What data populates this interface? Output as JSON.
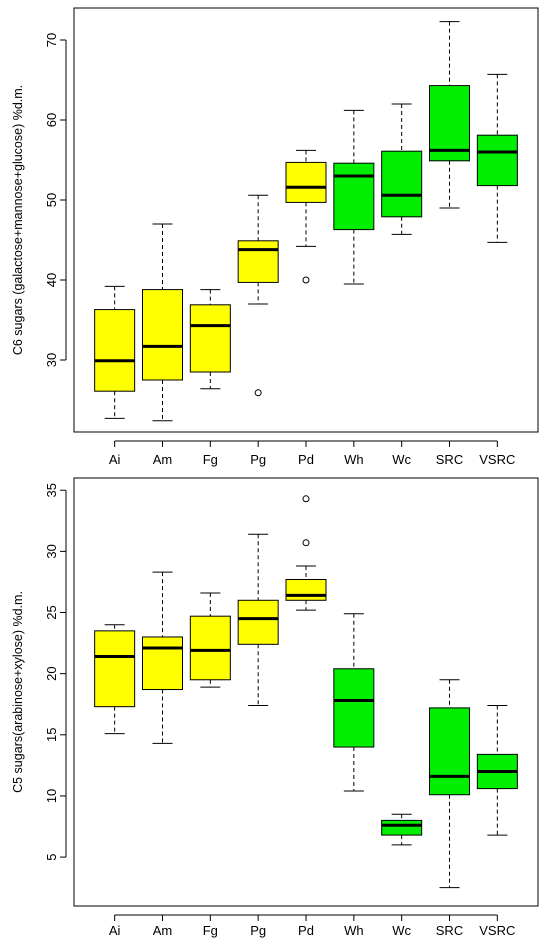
{
  "colors": {
    "yellow": "#ffff00",
    "green": "#00ee00",
    "outline": "#000000"
  },
  "chart_data": [
    {
      "type": "boxplot",
      "ylabel": "C6 sugars (galactose+mannose+glucose) %d.m.",
      "xlabel": "",
      "ylim": [
        21,
        74
      ],
      "yticks": [
        30,
        40,
        50,
        60,
        70
      ],
      "categories": [
        "Ai",
        "Am",
        "Fg",
        "Pg",
        "Pd",
        "Wh",
        "Wc",
        "SRC",
        "VSRC"
      ],
      "fill": [
        "yellow",
        "yellow",
        "yellow",
        "yellow",
        "yellow",
        "green",
        "green",
        "green",
        "green"
      ],
      "boxes": [
        {
          "min": 22.7,
          "q1": 26.1,
          "median": 29.9,
          "q3": 36.3,
          "max": 39.2,
          "outliers": []
        },
        {
          "min": 22.4,
          "q1": 27.5,
          "median": 31.7,
          "q3": 38.8,
          "max": 47.0,
          "outliers": []
        },
        {
          "min": 26.4,
          "q1": 28.5,
          "median": 34.3,
          "q3": 36.9,
          "max": 38.8,
          "outliers": []
        },
        {
          "min": 37.0,
          "q1": 39.7,
          "median": 43.8,
          "q3": 44.9,
          "max": 50.6,
          "outliers": [
            25.9
          ]
        },
        {
          "min": 44.2,
          "q1": 49.7,
          "median": 51.6,
          "q3": 54.7,
          "max": 56.2,
          "outliers": [
            40.0
          ]
        },
        {
          "min": 39.5,
          "q1": 46.3,
          "median": 53.0,
          "q3": 54.6,
          "max": 61.2,
          "outliers": []
        },
        {
          "min": 45.7,
          "q1": 47.9,
          "median": 50.6,
          "q3": 56.1,
          "max": 62.0,
          "outliers": []
        },
        {
          "min": 49.0,
          "q1": 54.9,
          "median": 56.2,
          "q3": 64.3,
          "max": 72.3,
          "outliers": []
        },
        {
          "min": 44.7,
          "q1": 51.8,
          "median": 56.0,
          "q3": 58.1,
          "max": 65.7,
          "outliers": []
        }
      ]
    },
    {
      "type": "boxplot",
      "ylabel": "C5 sugars(arabinose+xylose) %d.m.",
      "xlabel": "",
      "ylim": [
        1,
        36
      ],
      "yticks": [
        5,
        10,
        15,
        20,
        25,
        30,
        35
      ],
      "categories": [
        "Ai",
        "Am",
        "Fg",
        "Pg",
        "Pd",
        "Wh",
        "Wc",
        "SRC",
        "VSRC"
      ],
      "fill": [
        "yellow",
        "yellow",
        "yellow",
        "yellow",
        "yellow",
        "green",
        "green",
        "green",
        "green"
      ],
      "boxes": [
        {
          "min": 15.1,
          "q1": 17.3,
          "median": 21.4,
          "q3": 23.5,
          "max": 24.0,
          "outliers": []
        },
        {
          "min": 14.3,
          "q1": 18.7,
          "median": 22.1,
          "q3": 23.0,
          "max": 28.3,
          "outliers": []
        },
        {
          "min": 18.9,
          "q1": 19.5,
          "median": 21.9,
          "q3": 24.7,
          "max": 26.6,
          "outliers": []
        },
        {
          "min": 17.4,
          "q1": 22.4,
          "median": 24.5,
          "q3": 26.0,
          "max": 31.4,
          "outliers": []
        },
        {
          "min": 25.2,
          "q1": 26.0,
          "median": 26.4,
          "q3": 27.7,
          "max": 28.8,
          "outliers": [
            30.7,
            34.3
          ]
        },
        {
          "min": 10.4,
          "q1": 14.0,
          "median": 17.8,
          "q3": 20.4,
          "max": 24.9,
          "outliers": []
        },
        {
          "min": 6.0,
          "q1": 6.8,
          "median": 7.6,
          "q3": 8.0,
          "max": 8.5,
          "outliers": []
        },
        {
          "min": 2.5,
          "q1": 10.1,
          "median": 11.6,
          "q3": 17.2,
          "max": 19.5,
          "outliers": []
        },
        {
          "min": 6.8,
          "q1": 10.6,
          "median": 12.0,
          "q3": 13.4,
          "max": 17.4,
          "outliers": []
        }
      ]
    }
  ]
}
